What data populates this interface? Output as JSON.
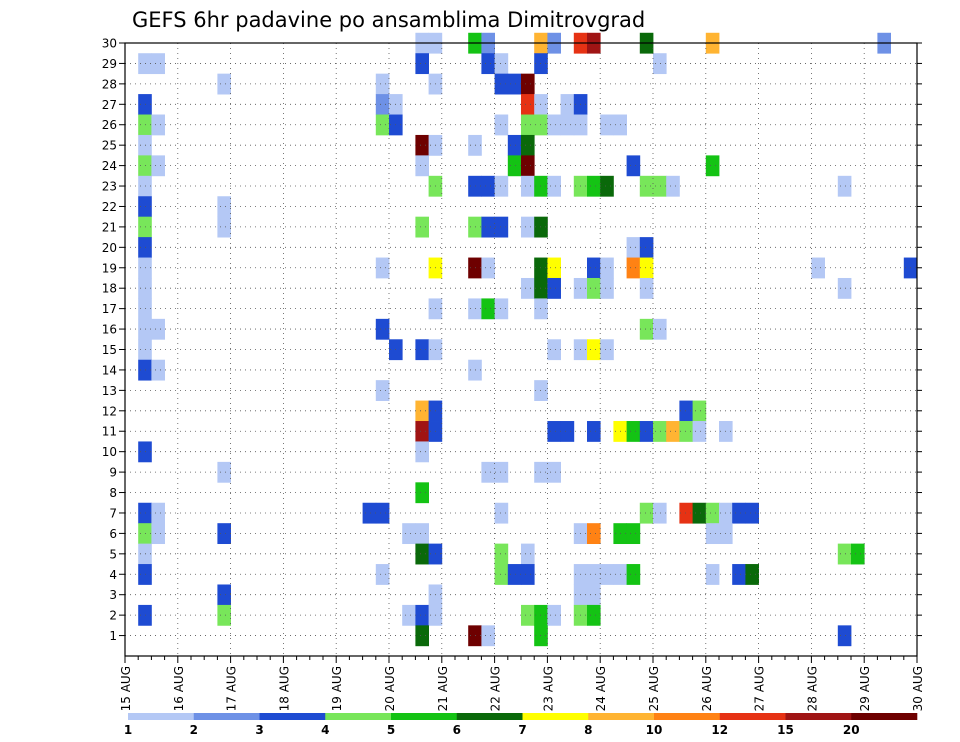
{
  "chart_data": {
    "type": "heatmap",
    "title": "GEFS 6hr padavine po ansamblima Dimitrovgrad",
    "x_tick_labels": [
      "15 AUG",
      "16 AUG",
      "17 AUG",
      "18 AUG",
      "19 AUG",
      "20 AUG",
      "21 AUG",
      "22 AUG",
      "23 AUG",
      "24 AUG",
      "25 AUG",
      "26 AUG",
      "27 AUG",
      "28 AUG",
      "29 AUG",
      "30 AUG"
    ],
    "y_tick_labels": [
      "1",
      "2",
      "3",
      "4",
      "5",
      "6",
      "7",
      "8",
      "9",
      "10",
      "11",
      "12",
      "13",
      "14",
      "15",
      "16",
      "17",
      "18",
      "19",
      "20",
      "21",
      "22",
      "23",
      "24",
      "25",
      "26",
      "27",
      "28",
      "29",
      "30"
    ],
    "x_range_days": [
      0,
      15
    ],
    "y_range": [
      0,
      30
    ],
    "grid": true,
    "colorbar": {
      "labels": [
        "1",
        "2",
        "3",
        "4",
        "5",
        "6",
        "7",
        "8",
        "10",
        "12",
        "15",
        "20"
      ],
      "colors": [
        "#b4c8f5",
        "#6e91e6",
        "#1e4bd2",
        "#78e65a",
        "#14c314",
        "#0a690a",
        "#ffff00",
        "#ffb432",
        "#ff8214",
        "#e63214",
        "#a01414",
        "#6e0000"
      ]
    },
    "cells": [
      [
        30,
        0,
        22
      ],
      [
        30,
        0,
        23
      ],
      [
        30,
        4,
        26
      ],
      [
        30,
        1,
        27
      ],
      [
        30,
        7,
        31
      ],
      [
        30,
        1,
        32
      ],
      [
        30,
        9,
        34
      ],
      [
        30,
        10,
        35
      ],
      [
        30,
        5,
        39
      ],
      [
        30,
        7,
        44
      ],
      [
        30,
        1,
        57
      ],
      [
        29,
        0,
        1
      ],
      [
        29,
        0,
        2
      ],
      [
        29,
        2,
        22
      ],
      [
        29,
        2,
        27
      ],
      [
        29,
        0,
        28
      ],
      [
        29,
        2,
        31
      ],
      [
        29,
        0,
        40
      ],
      [
        28,
        0,
        7
      ],
      [
        28,
        0,
        19
      ],
      [
        28,
        0,
        23
      ],
      [
        28,
        2,
        28
      ],
      [
        28,
        2,
        29
      ],
      [
        28,
        11,
        30
      ],
      [
        27,
        2,
        1
      ],
      [
        27,
        1,
        19
      ],
      [
        27,
        0,
        20
      ],
      [
        27,
        9,
        30
      ],
      [
        27,
        0,
        31
      ],
      [
        27,
        0,
        33
      ],
      [
        27,
        2,
        34
      ],
      [
        26,
        3,
        1
      ],
      [
        26,
        0,
        2
      ],
      [
        26,
        3,
        19
      ],
      [
        26,
        2,
        20
      ],
      [
        26,
        0,
        28
      ],
      [
        26,
        3,
        30
      ],
      [
        26,
        3,
        31
      ],
      [
        26,
        0,
        32
      ],
      [
        26,
        0,
        33
      ],
      [
        26,
        0,
        34
      ],
      [
        26,
        0,
        36
      ],
      [
        26,
        0,
        37
      ],
      [
        25,
        0,
        1
      ],
      [
        25,
        11,
        22
      ],
      [
        25,
        0,
        23
      ],
      [
        25,
        0,
        26
      ],
      [
        25,
        2,
        29
      ],
      [
        25,
        5,
        30
      ],
      [
        24,
        3,
        1
      ],
      [
        24,
        0,
        2
      ],
      [
        24,
        0,
        22
      ],
      [
        24,
        4,
        29
      ],
      [
        24,
        11,
        30
      ],
      [
        24,
        2,
        38
      ],
      [
        24,
        4,
        44
      ],
      [
        23,
        0,
        1
      ],
      [
        23,
        3,
        23
      ],
      [
        23,
        2,
        26
      ],
      [
        23,
        2,
        27
      ],
      [
        23,
        0,
        28
      ],
      [
        23,
        0,
        30
      ],
      [
        23,
        4,
        31
      ],
      [
        23,
        0,
        32
      ],
      [
        23,
        3,
        34
      ],
      [
        23,
        4,
        35
      ],
      [
        23,
        5,
        36
      ],
      [
        23,
        3,
        39
      ],
      [
        23,
        3,
        40
      ],
      [
        23,
        0,
        41
      ],
      [
        23,
        0,
        54
      ],
      [
        22,
        2,
        1
      ],
      [
        22,
        0,
        7
      ],
      [
        21,
        3,
        1
      ],
      [
        21,
        0,
        7
      ],
      [
        21,
        3,
        22
      ],
      [
        21,
        3,
        26
      ],
      [
        21,
        2,
        27
      ],
      [
        21,
        2,
        28
      ],
      [
        21,
        0,
        30
      ],
      [
        21,
        5,
        31
      ],
      [
        20,
        2,
        1
      ],
      [
        20,
        0,
        38
      ],
      [
        20,
        2,
        39
      ],
      [
        19,
        0,
        1
      ],
      [
        19,
        0,
        19
      ],
      [
        19,
        6,
        23
      ],
      [
        19,
        11,
        26
      ],
      [
        19,
        0,
        27
      ],
      [
        19,
        5,
        31
      ],
      [
        19,
        6,
        32
      ],
      [
        19,
        2,
        35
      ],
      [
        19,
        0,
        36
      ],
      [
        19,
        8,
        38
      ],
      [
        19,
        6,
        39
      ],
      [
        19,
        0,
        52
      ],
      [
        19,
        2,
        59
      ],
      [
        18,
        0,
        1
      ],
      [
        18,
        0,
        30
      ],
      [
        18,
        5,
        31
      ],
      [
        18,
        2,
        32
      ],
      [
        18,
        0,
        34
      ],
      [
        18,
        3,
        35
      ],
      [
        18,
        0,
        36
      ],
      [
        18,
        0,
        39
      ],
      [
        18,
        0,
        54
      ],
      [
        17,
        0,
        1
      ],
      [
        17,
        0,
        23
      ],
      [
        17,
        0,
        26
      ],
      [
        17,
        4,
        27
      ],
      [
        17,
        0,
        28
      ],
      [
        17,
        0,
        31
      ],
      [
        16,
        0,
        1
      ],
      [
        16,
        0,
        2
      ],
      [
        16,
        2,
        19
      ],
      [
        16,
        3,
        39
      ],
      [
        16,
        0,
        40
      ],
      [
        15,
        0,
        1
      ],
      [
        15,
        2,
        20
      ],
      [
        15,
        2,
        22
      ],
      [
        15,
        0,
        23
      ],
      [
        15,
        0,
        32
      ],
      [
        15,
        0,
        34
      ],
      [
        15,
        6,
        35
      ],
      [
        15,
        0,
        36
      ],
      [
        14,
        2,
        1
      ],
      [
        14,
        0,
        2
      ],
      [
        14,
        0,
        26
      ],
      [
        13,
        0,
        19
      ],
      [
        13,
        0,
        31
      ],
      [
        12,
        7,
        22
      ],
      [
        12,
        2,
        23
      ],
      [
        12,
        2,
        42
      ],
      [
        12,
        3,
        43
      ],
      [
        11,
        10,
        22
      ],
      [
        11,
        2,
        23
      ],
      [
        11,
        2,
        32
      ],
      [
        11,
        2,
        33
      ],
      [
        11,
        2,
        35
      ],
      [
        11,
        6,
        37
      ],
      [
        11,
        4,
        38
      ],
      [
        11,
        2,
        39
      ],
      [
        11,
        3,
        40
      ],
      [
        11,
        7,
        41
      ],
      [
        11,
        3,
        42
      ],
      [
        11,
        0,
        43
      ],
      [
        11,
        0,
        45
      ],
      [
        10,
        2,
        1
      ],
      [
        10,
        0,
        22
      ],
      [
        9,
        0,
        7
      ],
      [
        9,
        0,
        27
      ],
      [
        9,
        0,
        28
      ],
      [
        9,
        0,
        31
      ],
      [
        9,
        0,
        32
      ],
      [
        8,
        4,
        22
      ],
      [
        7,
        2,
        1
      ],
      [
        7,
        0,
        2
      ],
      [
        7,
        2,
        18
      ],
      [
        7,
        2,
        19
      ],
      [
        7,
        0,
        28
      ],
      [
        7,
        3,
        39
      ],
      [
        7,
        0,
        40
      ],
      [
        7,
        9,
        42
      ],
      [
        7,
        5,
        43
      ],
      [
        7,
        3,
        44
      ],
      [
        7,
        0,
        45
      ],
      [
        7,
        2,
        46
      ],
      [
        7,
        2,
        47
      ],
      [
        6,
        3,
        1
      ],
      [
        6,
        0,
        2
      ],
      [
        6,
        2,
        7
      ],
      [
        6,
        0,
        21
      ],
      [
        6,
        0,
        22
      ],
      [
        6,
        0,
        34
      ],
      [
        6,
        8,
        35
      ],
      [
        6,
        4,
        37
      ],
      [
        6,
        4,
        38
      ],
      [
        6,
        0,
        44
      ],
      [
        6,
        0,
        45
      ],
      [
        5,
        0,
        1
      ],
      [
        5,
        5,
        22
      ],
      [
        5,
        2,
        23
      ],
      [
        5,
        3,
        28
      ],
      [
        5,
        0,
        30
      ],
      [
        5,
        3,
        54
      ],
      [
        5,
        4,
        55
      ],
      [
        4,
        2,
        1
      ],
      [
        4,
        0,
        19
      ],
      [
        4,
        3,
        28
      ],
      [
        4,
        2,
        29
      ],
      [
        4,
        2,
        30
      ],
      [
        4,
        0,
        34
      ],
      [
        4,
        0,
        35
      ],
      [
        4,
        0,
        36
      ],
      [
        4,
        0,
        37
      ],
      [
        4,
        4,
        38
      ],
      [
        4,
        0,
        44
      ],
      [
        4,
        2,
        46
      ],
      [
        4,
        5,
        47
      ],
      [
        3,
        2,
        7
      ],
      [
        3,
        0,
        23
      ],
      [
        3,
        0,
        34
      ],
      [
        3,
        0,
        35
      ],
      [
        2,
        2,
        1
      ],
      [
        2,
        3,
        7
      ],
      [
        2,
        0,
        21
      ],
      [
        2,
        2,
        22
      ],
      [
        2,
        0,
        23
      ],
      [
        2,
        3,
        30
      ],
      [
        2,
        4,
        31
      ],
      [
        2,
        0,
        32
      ],
      [
        2,
        3,
        34
      ],
      [
        2,
        4,
        35
      ],
      [
        1,
        5,
        22
      ],
      [
        1,
        11,
        26
      ],
      [
        1,
        0,
        27
      ],
      [
        1,
        4,
        31
      ],
      [
        1,
        2,
        54
      ]
    ]
  }
}
